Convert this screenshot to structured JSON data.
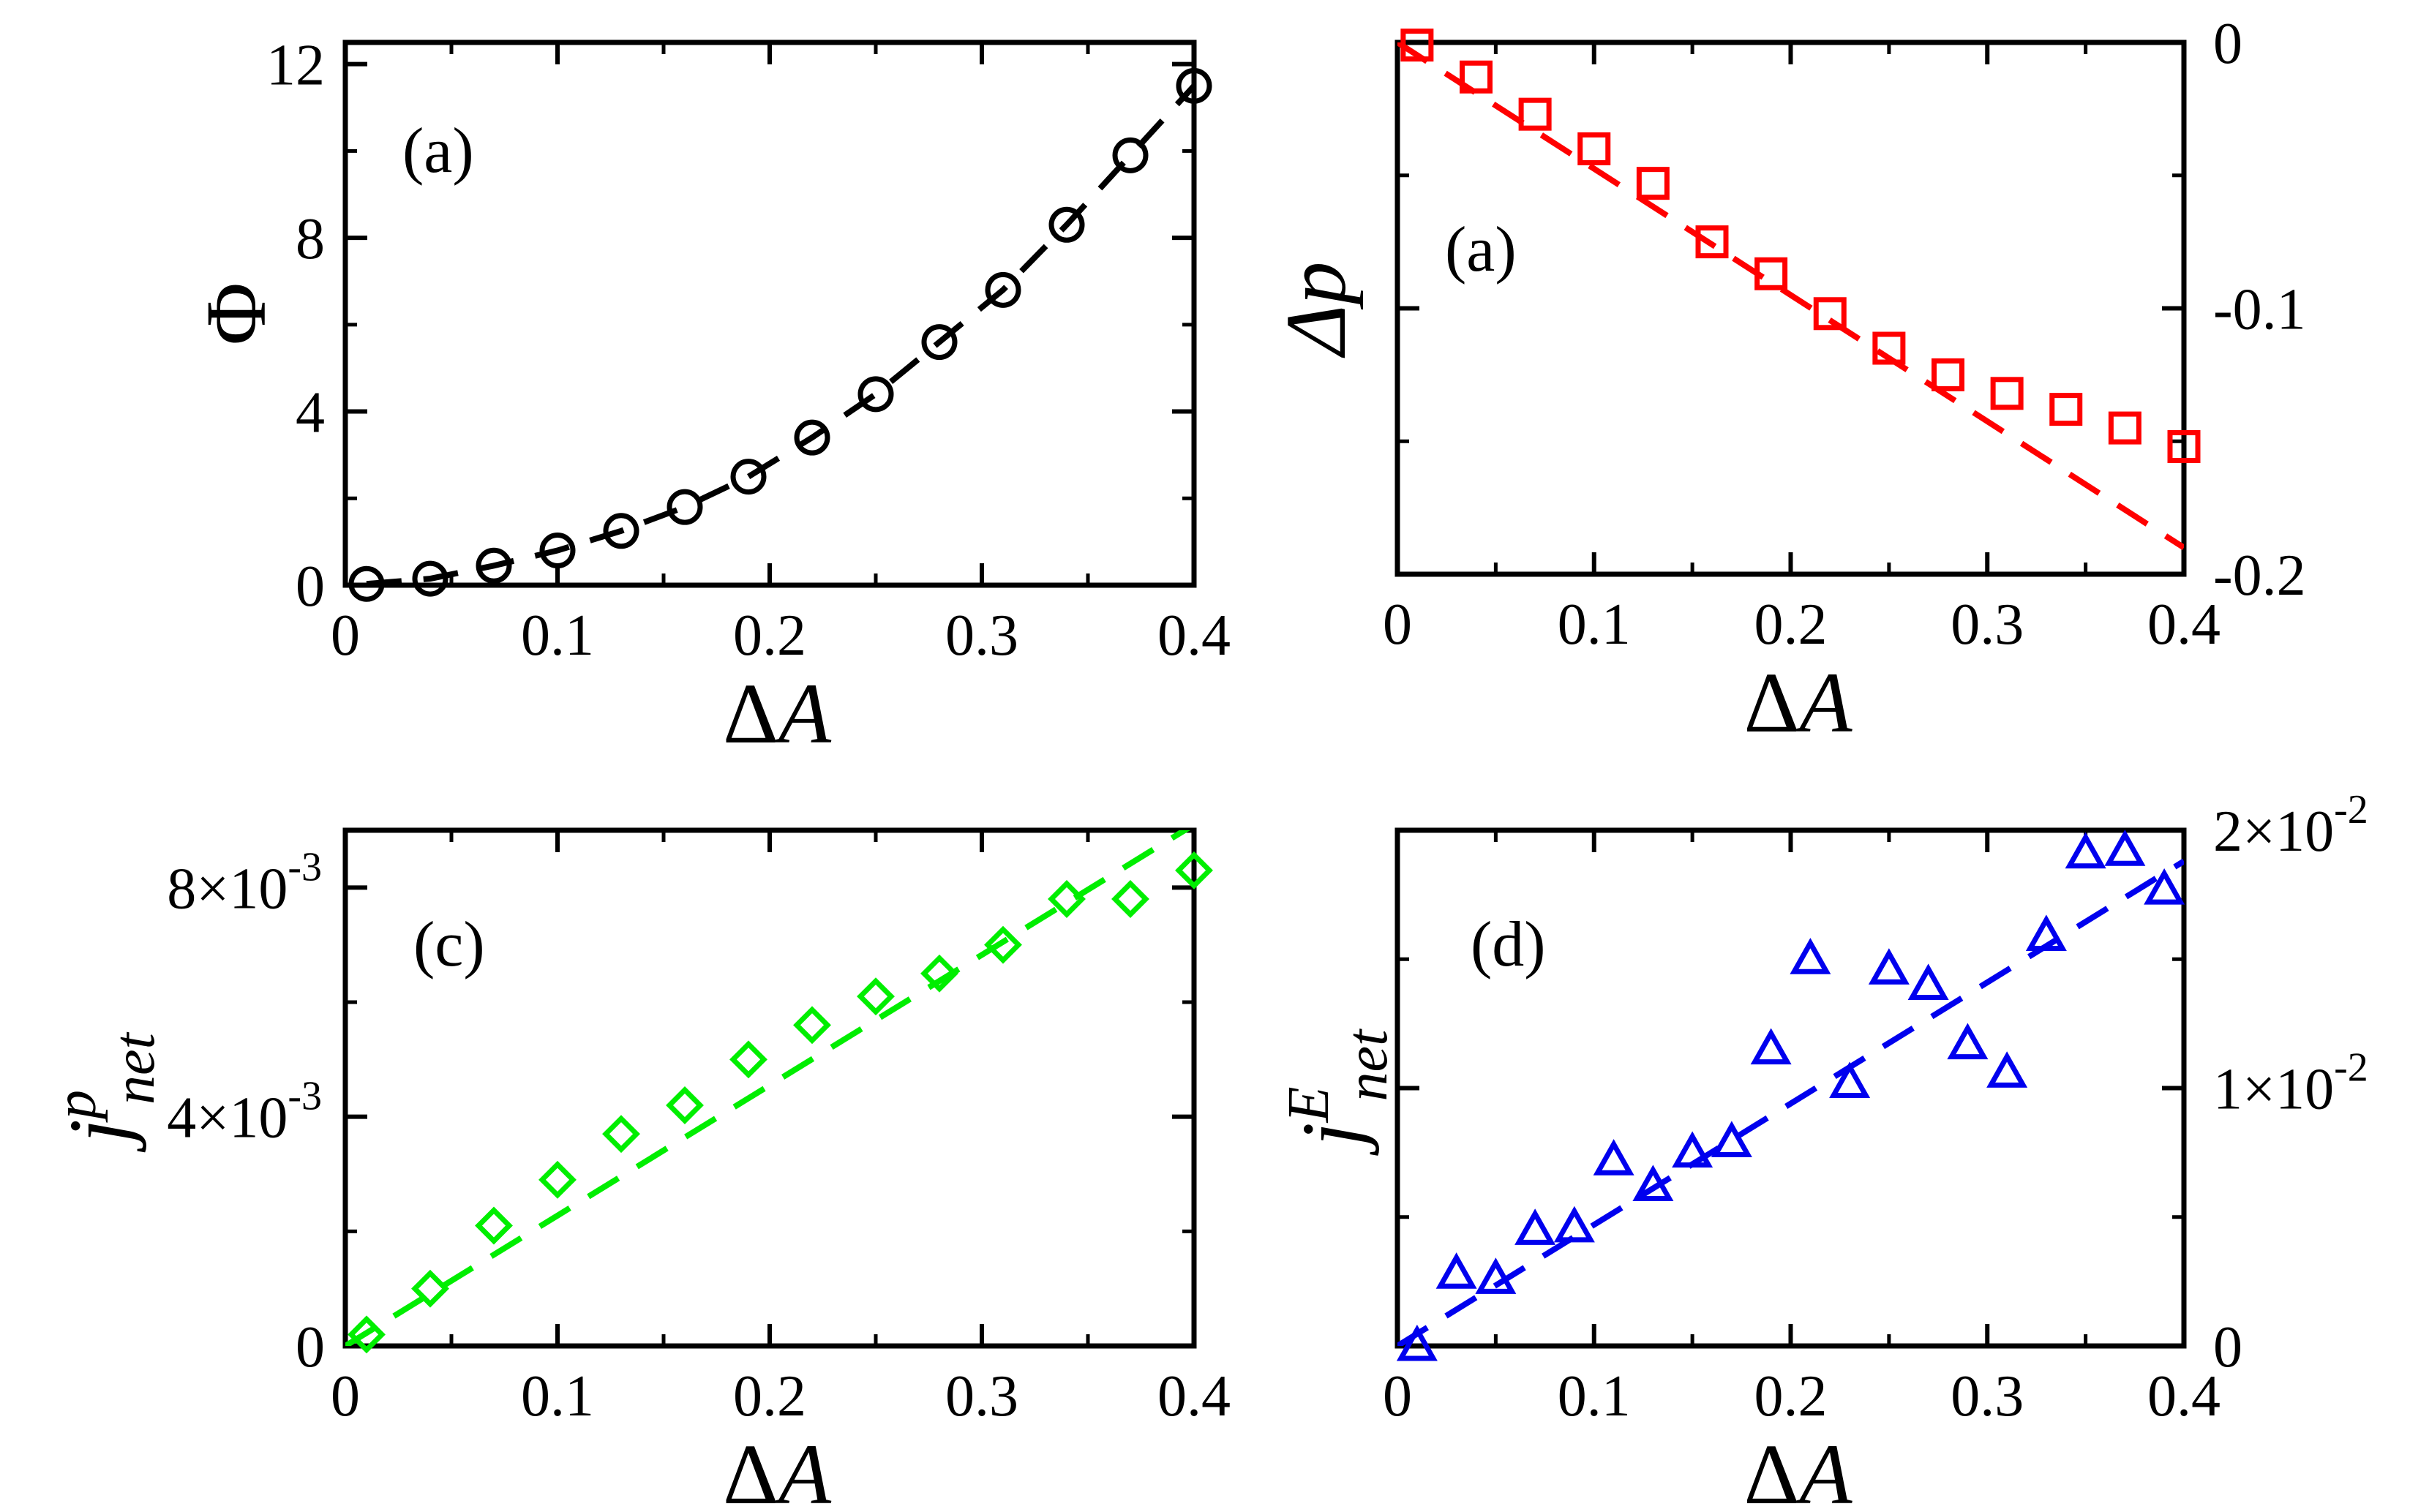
{
  "chart_data": [
    {
      "type": "scatter",
      "panel": "top-left",
      "panel_label": "(a)",
      "xlabel_greek": "Δ",
      "xlabel_var": "A",
      "ylabel": "Φ",
      "xlim": [
        0,
        0.4
      ],
      "ylim": [
        0,
        12.5
      ],
      "xticks": [
        0,
        0.1,
        0.2,
        0.3,
        0.4
      ],
      "xtick_labels": [
        "0",
        "0.1",
        "0.2",
        "0.3",
        "0.4"
      ],
      "yticks": [
        0,
        4,
        8,
        12
      ],
      "ytick_labels": [
        "0",
        "4",
        "8",
        "12"
      ],
      "y_axis_side": "left",
      "color": "#000000",
      "marker": "circle",
      "series": [
        {
          "name": "data",
          "x": [
            0.01,
            0.04,
            0.07,
            0.1,
            0.13,
            0.16,
            0.19,
            0.22,
            0.25,
            0.28,
            0.31,
            0.34,
            0.37,
            0.4
          ],
          "y": [
            0.03,
            0.15,
            0.45,
            0.8,
            1.25,
            1.8,
            2.5,
            3.4,
            4.4,
            5.6,
            6.8,
            8.3,
            9.9,
            11.5
          ]
        },
        {
          "name": "fit",
          "style": "dashed",
          "x": [
            0.01,
            0.04,
            0.07,
            0.1,
            0.13,
            0.16,
            0.19,
            0.22,
            0.25,
            0.28,
            0.31,
            0.34,
            0.37,
            0.4
          ],
          "y": [
            0.03,
            0.15,
            0.45,
            0.8,
            1.25,
            1.8,
            2.5,
            3.4,
            4.4,
            5.6,
            6.8,
            8.3,
            9.9,
            11.5
          ]
        }
      ]
    },
    {
      "type": "scatter",
      "panel": "top-right",
      "panel_label": "(a)",
      "xlabel_greek": "Δ",
      "xlabel_var": "A",
      "ylabel": "Δp",
      "xlim": [
        0,
        0.4
      ],
      "ylim": [
        -0.2,
        0
      ],
      "xticks": [
        0,
        0.1,
        0.2,
        0.3,
        0.4
      ],
      "xtick_labels": [
        "0",
        "0.1",
        "0.2",
        "0.3",
        "0.4"
      ],
      "yticks": [
        0,
        -0.1,
        -0.2
      ],
      "ytick_labels": [
        "0",
        "-0.1",
        "-0.2"
      ],
      "y_minor_ticks": [
        -0.05,
        -0.15
      ],
      "y_axis_side": "right",
      "color": "#ff0000",
      "marker": "square",
      "series": [
        {
          "name": "data",
          "x": [
            0.01,
            0.04,
            0.07,
            0.1,
            0.13,
            0.16,
            0.19,
            0.22,
            0.25,
            0.28,
            0.31,
            0.34,
            0.37,
            0.4
          ],
          "y": [
            -0.001,
            -0.013,
            -0.027,
            -0.04,
            -0.053,
            -0.075,
            -0.087,
            -0.102,
            -0.115,
            -0.125,
            -0.132,
            -0.138,
            -0.145,
            -0.152
          ]
        },
        {
          "name": "fit",
          "style": "dashed",
          "x": [
            0.0,
            0.4
          ],
          "y": [
            0.0,
            -0.19
          ]
        }
      ]
    },
    {
      "type": "scatter",
      "panel": "bottom-left",
      "panel_label": "(c)",
      "xlabel_greek": "Δ",
      "xlabel_var": "A",
      "ylabel_main": "j",
      "ylabel_sup": "p",
      "ylabel_sub": "net",
      "xlim": [
        0,
        0.4
      ],
      "ylim": [
        0,
        0.009
      ],
      "xticks": [
        0,
        0.1,
        0.2,
        0.3,
        0.4
      ],
      "xtick_labels": [
        "0",
        "0.1",
        "0.2",
        "0.3",
        "0.4"
      ],
      "yticks": [
        0,
        0.004,
        0.008
      ],
      "ytick_labels": [
        "0",
        "4×10",
        "8×10"
      ],
      "ytick_exponents": [
        "",
        "-3",
        "-3"
      ],
      "y_axis_side": "left",
      "color": "#00ee00",
      "marker": "diamond",
      "series": [
        {
          "name": "data",
          "x": [
            0.01,
            0.04,
            0.07,
            0.1,
            0.13,
            0.16,
            0.19,
            0.22,
            0.25,
            0.28,
            0.31,
            0.34,
            0.37,
            0.4
          ],
          "y": [
            0.0002,
            0.001,
            0.0021,
            0.0029,
            0.0037,
            0.0042,
            0.005,
            0.0056,
            0.0061,
            0.0065,
            0.007,
            0.0078,
            0.0078,
            0.0083
          ]
        },
        {
          "name": "fit",
          "style": "dashed",
          "x": [
            0.0,
            0.4
          ],
          "y": [
            0.0,
            0.0091
          ]
        }
      ]
    },
    {
      "type": "scatter",
      "panel": "bottom-right",
      "panel_label": "(d)",
      "xlabel_greek": "Δ",
      "xlabel_var": "A",
      "ylabel_main": "j",
      "ylabel_sup": "E",
      "ylabel_sub": "net",
      "xlim": [
        0,
        0.4
      ],
      "ylim": [
        0,
        0.02
      ],
      "xticks": [
        0,
        0.1,
        0.2,
        0.3,
        0.4
      ],
      "xtick_labels": [
        "0",
        "0.1",
        "0.2",
        "0.3",
        "0.4"
      ],
      "yticks": [
        0,
        0.01,
        0.02
      ],
      "ytick_labels": [
        "0",
        "1×10",
        "2×10"
      ],
      "ytick_exponents": [
        "",
        "-2",
        "-2"
      ],
      "y_minor_ticks": [
        0.005,
        0.015
      ],
      "y_axis_side": "right",
      "color": "#0000ee",
      "marker": "triangle",
      "series": [
        {
          "name": "data",
          "x": [
            0.01,
            0.03,
            0.05,
            0.07,
            0.09,
            0.11,
            0.13,
            0.15,
            0.17,
            0.19,
            0.21,
            0.23,
            0.25,
            0.27,
            0.29,
            0.31,
            0.33,
            0.35,
            0.37,
            0.39
          ],
          "y": [
            0.0,
            0.0028,
            0.0026,
            0.0045,
            0.0046,
            0.0072,
            0.0062,
            0.0075,
            0.0079,
            0.0115,
            0.015,
            0.0102,
            0.0146,
            0.014,
            0.0117,
            0.0106,
            0.0159,
            0.0191,
            0.0192,
            0.0177
          ]
        },
        {
          "name": "fit",
          "style": "dashed",
          "x": [
            0.0,
            0.4
          ],
          "y": [
            0.0,
            0.0188
          ]
        }
      ]
    }
  ]
}
